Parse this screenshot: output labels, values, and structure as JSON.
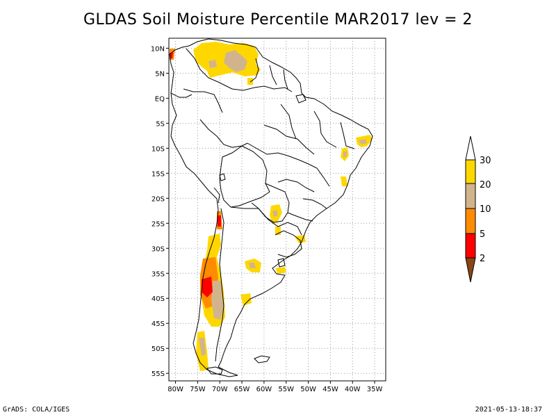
{
  "title": "GLDAS Soil Moisture Percentile MAR2017 lev = 2",
  "footer": {
    "left": "GrADS: COLA/IGES",
    "right": "2021-05-13-18:37"
  },
  "map": {
    "lat_labels": [
      "10N",
      "5N",
      "EQ",
      "5S",
      "10S",
      "15S",
      "20S",
      "25S",
      "30S",
      "35S",
      "40S",
      "45S",
      "50S",
      "55S"
    ],
    "lat_values": [
      10,
      5,
      0,
      -5,
      -10,
      -15,
      -20,
      -25,
      -30,
      -35,
      -40,
      -45,
      -50,
      -55
    ],
    "lon_labels": [
      "80W",
      "75W",
      "70W",
      "65W",
      "60W",
      "55W",
      "50W",
      "45W",
      "40W",
      "35W"
    ],
    "lon_values": [
      -80,
      -75,
      -70,
      -65,
      -60,
      -55,
      -50,
      -45,
      -40,
      -35
    ],
    "grid_style": "dotted",
    "colors": {
      "lt2": "#8b4513",
      "p2_5": "#ff0000",
      "p5_10": "#ff8c00",
      "p10_20": "#d2b48c",
      "p20_30": "#ffd700",
      "gt30": "#ffffff"
    }
  },
  "legend": {
    "labels": [
      "30",
      "20",
      "10",
      "5",
      "2"
    ],
    "colors": [
      "#ffffff",
      "#ffd700",
      "#d2b48c",
      "#ff8c00",
      "#ff0000",
      "#8b4513"
    ]
  }
}
